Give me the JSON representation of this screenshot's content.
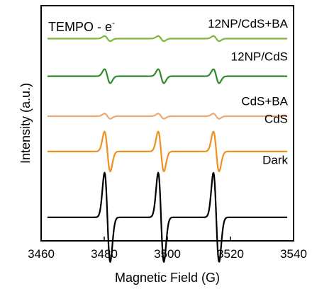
{
  "chart_data": {
    "type": "line",
    "xlabel": "Magnetic Field (G)",
    "ylabel": "Intensity (a.u.)",
    "xlim": [
      3460,
      3540
    ],
    "x_ticks": [
      3460,
      3480,
      3500,
      3520,
      3540
    ],
    "y_ticks_shown": false,
    "grid": false,
    "legend": "labels placed above each trace, right side",
    "annotation_main": "TEMPO - e",
    "annotation_sup": "-",
    "peak_centers": [
      3481,
      3498,
      3515.5
    ],
    "series": [
      {
        "name": "12NP/CdS+BA",
        "color": "#7db83a",
        "offset": 0.86,
        "amplitude": 0.011
      },
      {
        "name": "12NP/CdS",
        "color": "#2f8a2a",
        "offset": 0.7,
        "amplitude": 0.03
      },
      {
        "name": "CdS+BA",
        "color": "#f0a870",
        "offset": 0.53,
        "amplitude": 0.011
      },
      {
        "name": "CdS",
        "color": "#f0901e",
        "offset": 0.38,
        "amplitude": 0.085
      },
      {
        "name": "Dark",
        "color": "#000000",
        "offset": 0.1,
        "amplitude": 0.19
      }
    ]
  }
}
